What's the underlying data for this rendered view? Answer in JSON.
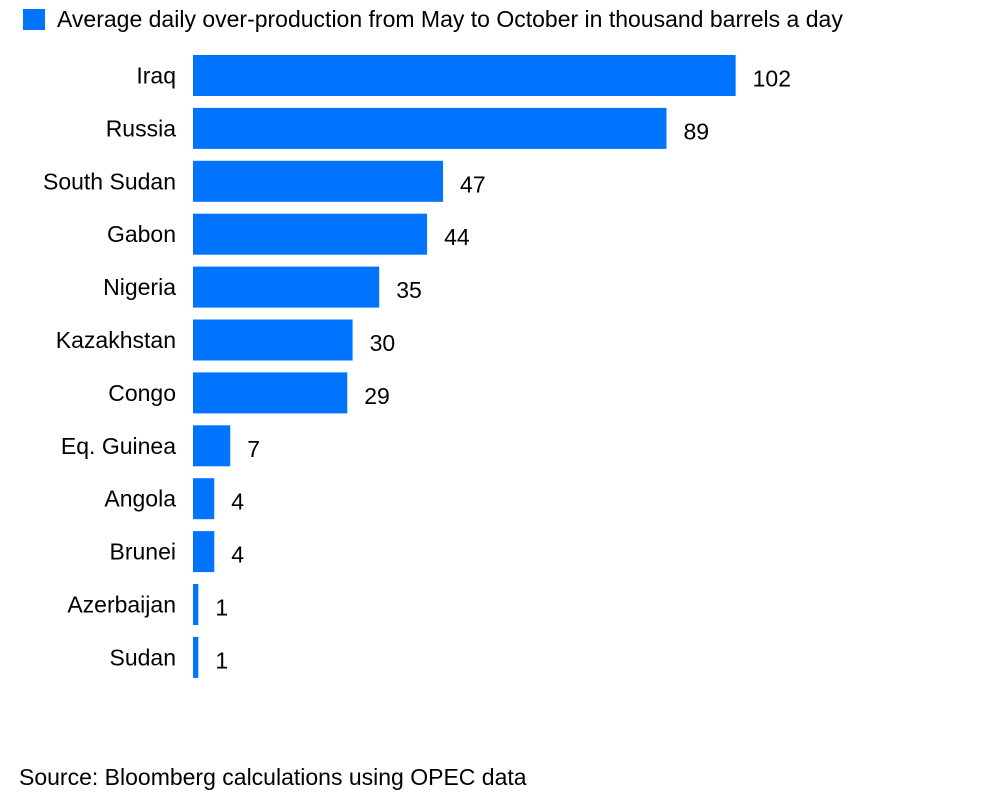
{
  "chart_data": {
    "type": "bar",
    "orientation": "horizontal",
    "categories": [
      "Iraq",
      "Russia",
      "South Sudan",
      "Gabon",
      "Nigeria",
      "Kazakhstan",
      "Congo",
      "Eq. Guinea",
      "Angola",
      "Brunei",
      "Azerbaijan",
      "Sudan"
    ],
    "series": [
      {
        "name": "Average daily over-production from May to October in thousand barrels a day",
        "values": [
          102,
          89,
          47,
          44,
          35,
          30,
          29,
          7,
          4,
          4,
          1,
          1
        ]
      }
    ],
    "legend_position": "top-left",
    "grid": false,
    "data_labels": true,
    "color": "#0073FF"
  },
  "source": "Source: Bloomberg calculations using OPEC data"
}
